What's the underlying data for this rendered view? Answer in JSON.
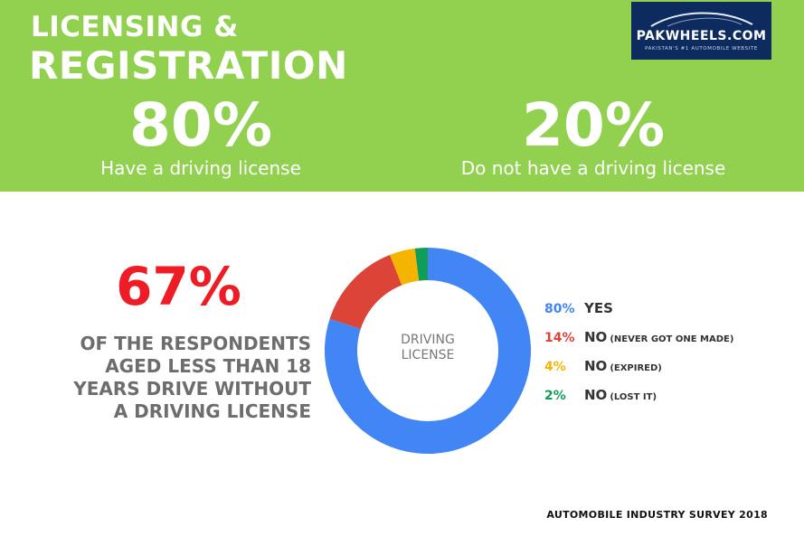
{
  "header": {
    "title_line1": "LICENSING &",
    "title_line2": "REGISTRATION",
    "bg_color": "#92d050"
  },
  "logo": {
    "brand": "PAKWHEELS.COM",
    "tagline": "PAKISTAN'S #1 AUTOMOBILE WEBSITE"
  },
  "stats": {
    "left": {
      "pct": "80%",
      "caption": "Have a driving license"
    },
    "right": {
      "pct": "20%",
      "caption": "Do not have a driving license"
    }
  },
  "highlight": {
    "pct": "67%",
    "lines": [
      "OF THE RESPONDENTS",
      "AGED LESS THAN 18",
      "YEARS DRIVE WITHOUT",
      "A DRIVING LICENSE"
    ],
    "color": "#ee1c24"
  },
  "chart_data": {
    "type": "pie",
    "center_label": [
      "DRIVING",
      "LICENSE"
    ],
    "slices": [
      {
        "value": 80,
        "pct_label": "80%",
        "label": "YES",
        "sub": "",
        "color": "#4285f4"
      },
      {
        "value": 14,
        "pct_label": "14%",
        "label": "NO",
        "sub": "(NEVER GOT ONE MADE)",
        "color": "#db4437"
      },
      {
        "value": 4,
        "pct_label": "4%",
        "label": "NO",
        "sub": "(EXPIRED)",
        "color": "#f4b400"
      },
      {
        "value": 2,
        "pct_label": "2%",
        "label": "NO",
        "sub": "(LOST IT)",
        "color": "#0f9d58"
      }
    ]
  },
  "footer": {
    "source": "AUTOMOBILE INDUSTRY SURVEY 2018"
  }
}
